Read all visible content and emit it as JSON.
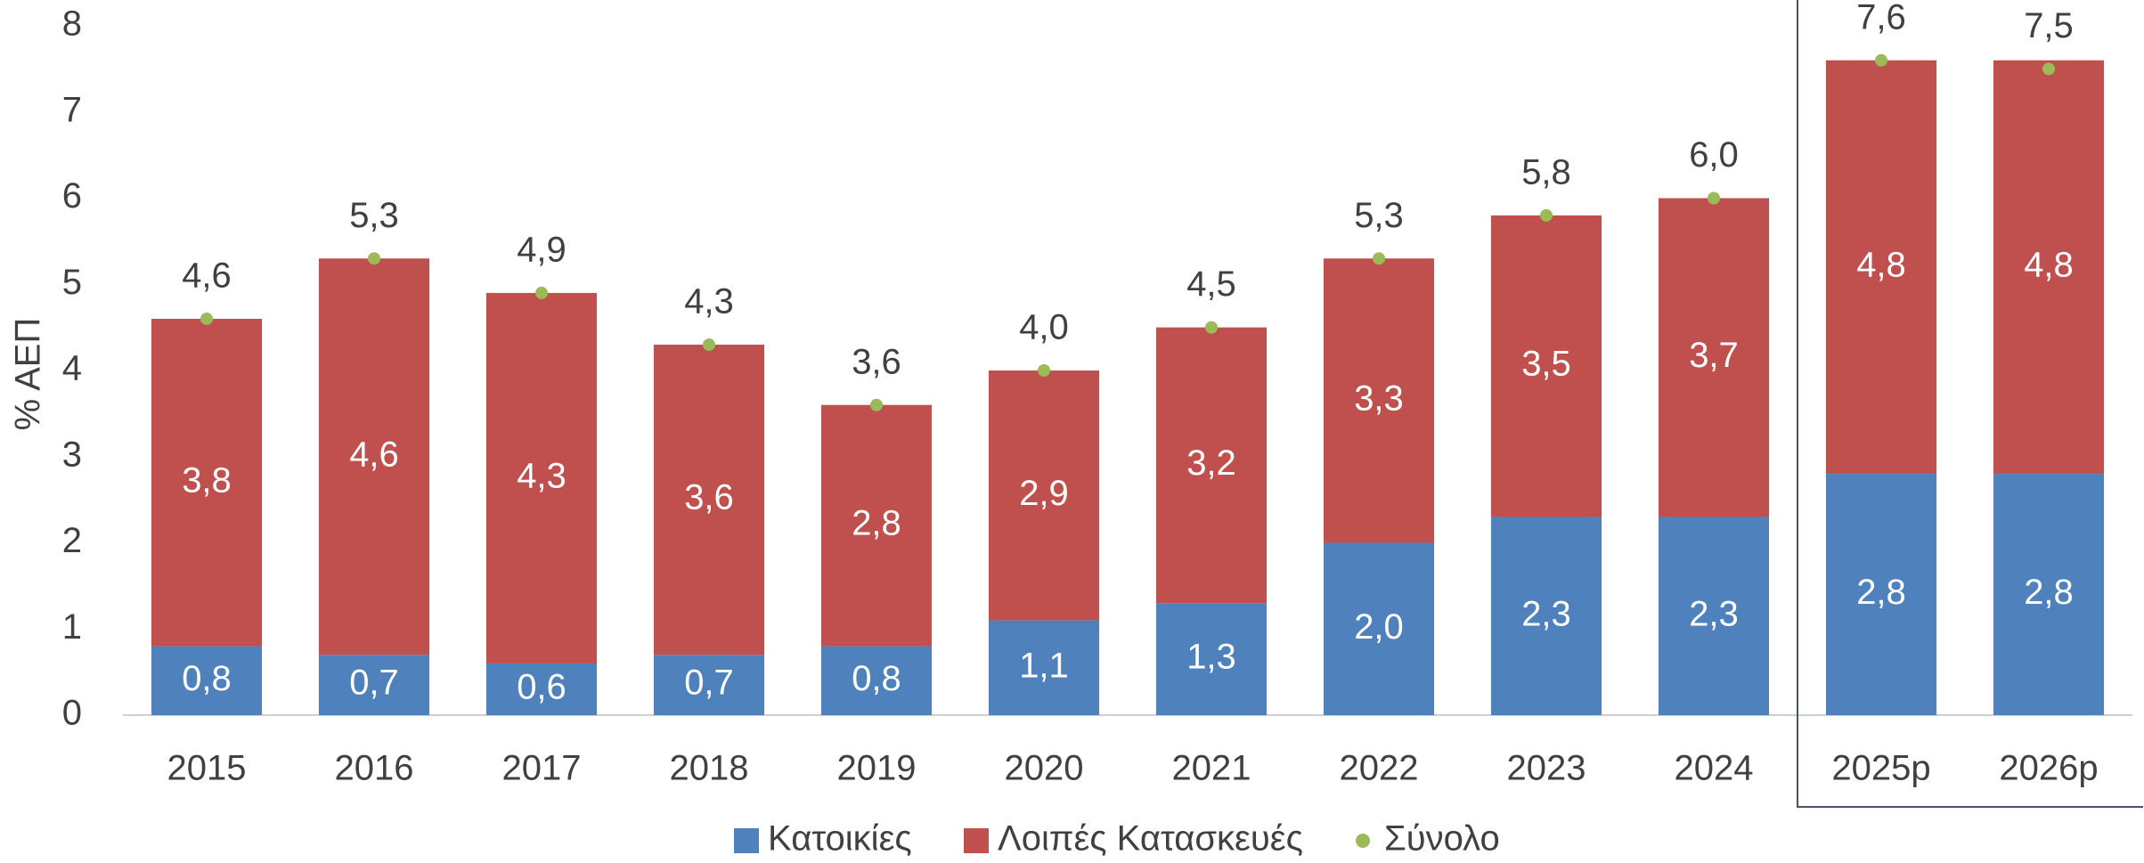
{
  "chart_data": {
    "type": "bar",
    "stacked": true,
    "y_label": "% ΑΕΠ",
    "categories": [
      "2015",
      "2016",
      "2017",
      "2018",
      "2019",
      "2020",
      "2021",
      "2022",
      "2023",
      "2024",
      "2025p",
      "2026p"
    ],
    "series": [
      {
        "name": "Κατοικίες",
        "color": "#4f81bd",
        "type": "bar",
        "values": [
          0.8,
          0.7,
          0.6,
          0.7,
          0.8,
          1.1,
          1.3,
          2.0,
          2.3,
          2.3,
          2.8,
          2.8
        ],
        "value_labels": [
          "0,8",
          "0,7",
          "0,6",
          "0,7",
          "0,8",
          "1,1",
          "1,3",
          "2,0",
          "2,3",
          "2,3",
          "2,8",
          "2,8"
        ]
      },
      {
        "name": "Λοιπές Κατασκευές",
        "color": "#c0504d",
        "type": "bar",
        "values": [
          3.8,
          4.6,
          4.3,
          3.6,
          2.8,
          2.9,
          3.2,
          3.3,
          3.5,
          3.7,
          4.8,
          4.8
        ],
        "value_labels": [
          "3,8",
          "4,6",
          "4,3",
          "3,6",
          "2,8",
          "2,9",
          "3,2",
          "3,3",
          "3,5",
          "3,7",
          "4,8",
          "4,8"
        ]
      },
      {
        "name": "Σύνολο",
        "color": "#9bbb59",
        "type": "scatter",
        "values": [
          4.6,
          5.3,
          4.9,
          4.3,
          3.6,
          4.0,
          4.5,
          5.3,
          5.8,
          6.0,
          7.6,
          7.5
        ],
        "value_labels": [
          "4,6",
          "5,3",
          "4,9",
          "4,3",
          "3,6",
          "4,0",
          "4,5",
          "5,3",
          "5,8",
          "6,0",
          "7,6",
          "7,5"
        ]
      }
    ],
    "ylim": [
      0,
      8
    ],
    "yticks": [
      0,
      1,
      2,
      3,
      4,
      5,
      6,
      7,
      8
    ],
    "grid": false,
    "legend": "bottom"
  }
}
